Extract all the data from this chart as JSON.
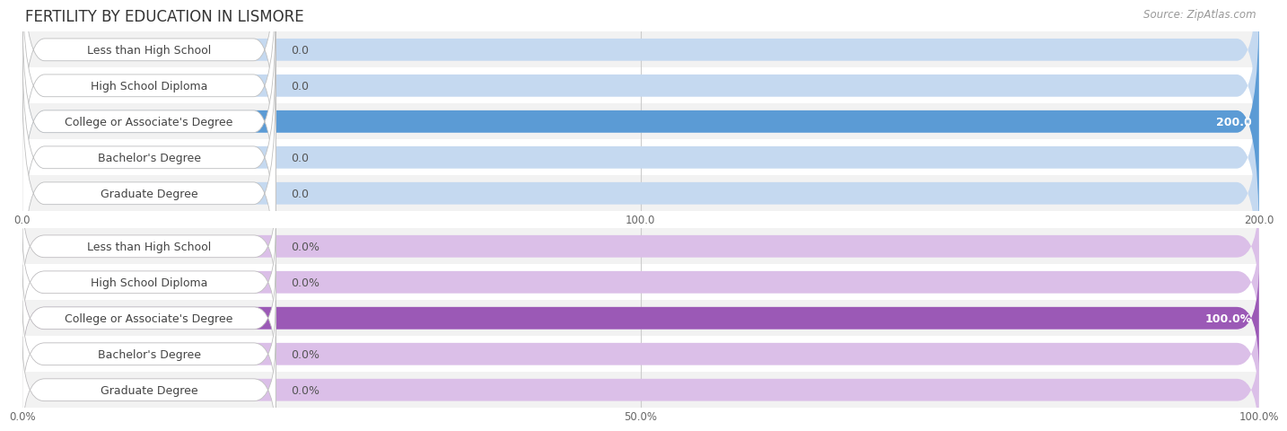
{
  "title": "FERTILITY BY EDUCATION IN LISMORE",
  "source": "Source: ZipAtlas.com",
  "top_chart": {
    "categories": [
      "Less than High School",
      "High School Diploma",
      "College or Associate's Degree",
      "Bachelor's Degree",
      "Graduate Degree"
    ],
    "values": [
      0.0,
      0.0,
      200.0,
      0.0,
      0.0
    ],
    "bar_color_full": "#5b9bd5",
    "bar_color_empty": "#c5d9f0",
    "xlim": [
      0,
      200
    ],
    "xticks": [
      0.0,
      100.0,
      200.0
    ],
    "xtick_labels": [
      "0.0",
      "100.0",
      "200.0"
    ]
  },
  "bottom_chart": {
    "categories": [
      "Less than High School",
      "High School Diploma",
      "College or Associate's Degree",
      "Bachelor's Degree",
      "Graduate Degree"
    ],
    "values": [
      0.0,
      0.0,
      100.0,
      0.0,
      0.0
    ],
    "bar_color_full": "#9b59b6",
    "bar_color_empty": "#dbbfe8",
    "xlim": [
      0,
      100
    ],
    "xticks": [
      0.0,
      50.0,
      100.0
    ],
    "xtick_labels": [
      "0.0%",
      "50.0%",
      "100.0%"
    ]
  },
  "bg_color": "#ffffff",
  "row_alt_color": "#f2f2f2",
  "title_fontsize": 12,
  "label_fontsize": 9,
  "value_fontsize": 9,
  "tick_fontsize": 8.5,
  "source_fontsize": 8.5
}
